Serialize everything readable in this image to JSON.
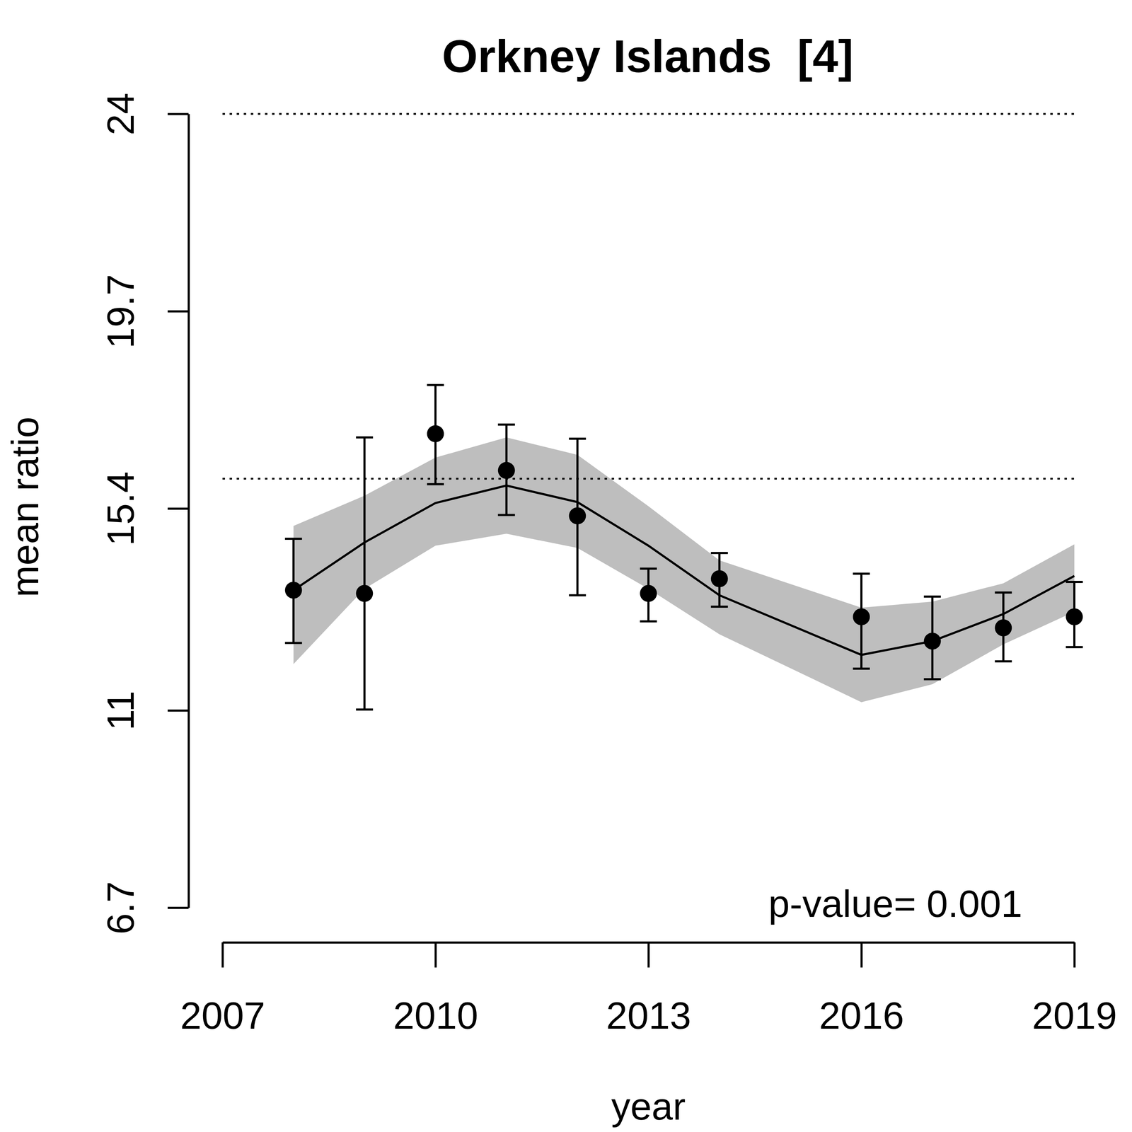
{
  "chart_data": {
    "type": "scatter",
    "title": "Orkney Islands  [4]",
    "x_label": "year",
    "y_label": "mean ratio",
    "annotation": "p-value= 0.001",
    "x": [
      2008,
      2009,
      2010,
      2011,
      2012,
      2013,
      2014,
      2016,
      2017,
      2018,
      2019
    ],
    "values": [
      13.62,
      13.55,
      17.03,
      16.23,
      15.24,
      13.55,
      13.87,
      13.04,
      12.51,
      12.8,
      13.04
    ],
    "error_lower": [
      12.47,
      11.02,
      15.93,
      15.26,
      13.51,
      12.94,
      13.26,
      11.91,
      11.68,
      12.07,
      12.38
    ],
    "error_upper": [
      14.74,
      16.95,
      18.09,
      17.23,
      16.92,
      14.09,
      14.43,
      13.98,
      13.48,
      13.57,
      13.8
    ],
    "fit": [
      13.62,
      14.66,
      15.52,
      15.9,
      15.54,
      14.59,
      13.51,
      12.21,
      12.51,
      13.1,
      13.93
    ],
    "fit_lower": [
      12.01,
      13.65,
      14.59,
      14.85,
      14.54,
      13.65,
      12.66,
      11.18,
      11.57,
      12.44,
      13.15
    ],
    "fit_upper": [
      15.02,
      15.68,
      16.51,
      16.95,
      16.57,
      15.45,
      14.27,
      13.24,
      13.37,
      13.77,
      14.62
    ],
    "reference_lines": [
      24,
      16.05
    ],
    "xlim": [
      2007,
      2019
    ],
    "xticks": [
      2007,
      2010,
      2013,
      2016,
      2019
    ],
    "ylim": [
      6.7,
      24
    ],
    "yticks": [
      6.7,
      11,
      15.4,
      19.7,
      24
    ],
    "color": "#000000",
    "band_color": "#bebebe",
    "marker": "circle",
    "grid": false
  }
}
